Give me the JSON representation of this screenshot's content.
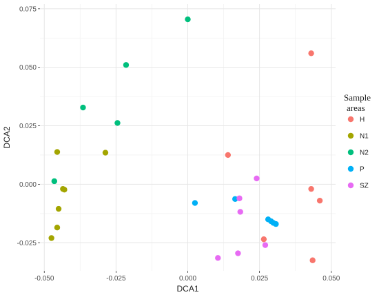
{
  "chart_data": {
    "type": "scatter",
    "title": "",
    "xlabel": "DCA1",
    "ylabel": "DCA2",
    "xlim": [
      -0.0515,
      0.0515
    ],
    "ylim": [
      -0.037,
      0.077
    ],
    "x_ticks": [
      -0.05,
      -0.025,
      0.0,
      0.025,
      0.05
    ],
    "x_tick_labels": [
      "-0.050",
      "-0.025",
      "0.000",
      "0.025",
      "0.050"
    ],
    "y_ticks": [
      -0.025,
      0.0,
      0.025,
      0.05,
      0.075
    ],
    "y_tick_labels": [
      "-0.025",
      "0.000",
      "0.025",
      "0.050",
      "0.075"
    ],
    "grid": true,
    "legend": {
      "title": "Sample\nareas",
      "placement": "right"
    },
    "series": [
      {
        "name": "H",
        "color": "#F8766D",
        "points": [
          {
            "x": 0.043,
            "y": 0.056
          },
          {
            "x": 0.014,
            "y": 0.0125
          },
          {
            "x": 0.043,
            "y": -0.002
          },
          {
            "x": 0.046,
            "y": -0.007
          },
          {
            "x": 0.0265,
            "y": -0.0235
          },
          {
            "x": 0.0435,
            "y": -0.0325
          }
        ]
      },
      {
        "name": "N1",
        "color": "#A3A500",
        "points": [
          {
            "x": -0.0455,
            "y": 0.0138
          },
          {
            "x": -0.0287,
            "y": 0.0135
          },
          {
            "x": -0.0435,
            "y": -0.002
          },
          {
            "x": -0.043,
            "y": -0.0023
          },
          {
            "x": -0.045,
            "y": -0.0105
          },
          {
            "x": -0.0455,
            "y": -0.0185
          },
          {
            "x": -0.0475,
            "y": -0.023
          }
        ]
      },
      {
        "name": "N2",
        "color": "#00BF7D",
        "points": [
          {
            "x": 0.0,
            "y": 0.0705
          },
          {
            "x": -0.0215,
            "y": 0.051
          },
          {
            "x": -0.0365,
            "y": 0.0328
          },
          {
            "x": -0.0245,
            "y": 0.0262
          },
          {
            "x": -0.0465,
            "y": 0.0013
          }
        ]
      },
      {
        "name": "P",
        "color": "#00B0F6",
        "points": [
          {
            "x": 0.0025,
            "y": -0.008
          },
          {
            "x": 0.0165,
            "y": -0.0063
          },
          {
            "x": 0.028,
            "y": -0.015
          },
          {
            "x": 0.029,
            "y": -0.0158
          },
          {
            "x": 0.0298,
            "y": -0.0165
          },
          {
            "x": 0.0307,
            "y": -0.017
          }
        ]
      },
      {
        "name": "SZ",
        "color": "#E76BF3",
        "points": [
          {
            "x": 0.024,
            "y": 0.0025
          },
          {
            "x": 0.018,
            "y": -0.006
          },
          {
            "x": 0.0183,
            "y": -0.0118
          },
          {
            "x": 0.027,
            "y": -0.026
          },
          {
            "x": 0.0175,
            "y": -0.0295
          },
          {
            "x": 0.0105,
            "y": -0.0315
          }
        ]
      }
    ]
  }
}
